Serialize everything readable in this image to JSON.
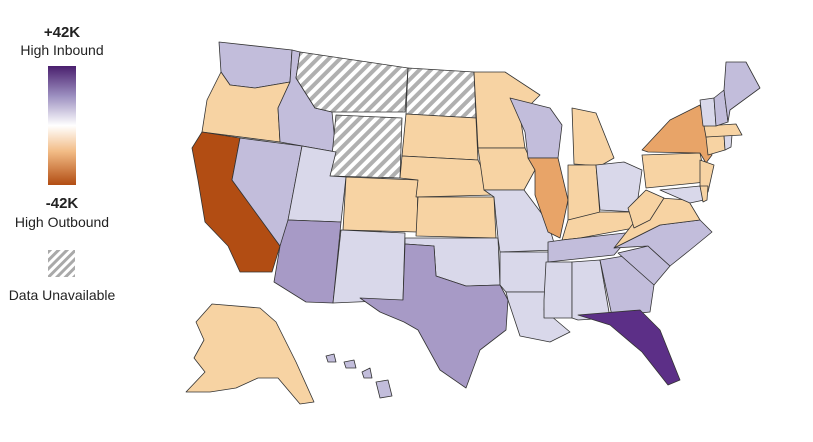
{
  "legend": {
    "max_label": "+42K",
    "max_caption": "High Inbound",
    "min_label": "-42K",
    "min_caption": "High Outbound",
    "unavailable_caption": "Data Unavailable"
  },
  "scale": {
    "max": 42000,
    "min": -42000,
    "color_max": "#4a1f6e",
    "color_mid": "#ffffff",
    "color_min": "#b24d13",
    "unavailable_pattern": "diagonal-gray-hatch"
  },
  "chart_data": {
    "type": "choropleth",
    "states": [
      {
        "code": "WA",
        "level": "light-purple"
      },
      {
        "code": "OR",
        "level": "light-orange"
      },
      {
        "code": "CA",
        "level": "dark-orange"
      },
      {
        "code": "ID",
        "level": "light-purple"
      },
      {
        "code": "NV",
        "level": "light-purple"
      },
      {
        "code": "MT",
        "level": "unavailable"
      },
      {
        "code": "WY",
        "level": "unavailable"
      },
      {
        "code": "UT",
        "level": "very-light-purple"
      },
      {
        "code": "AZ",
        "level": "medium-purple"
      },
      {
        "code": "CO",
        "level": "light-orange"
      },
      {
        "code": "NM",
        "level": "very-light-purple"
      },
      {
        "code": "ND",
        "level": "unavailable"
      },
      {
        "code": "SD",
        "level": "light-orange"
      },
      {
        "code": "NE",
        "level": "light-orange"
      },
      {
        "code": "KS",
        "level": "light-orange"
      },
      {
        "code": "OK",
        "level": "very-light-purple"
      },
      {
        "code": "TX",
        "level": "medium-purple"
      },
      {
        "code": "MN",
        "level": "light-orange"
      },
      {
        "code": "IA",
        "level": "light-orange"
      },
      {
        "code": "MO",
        "level": "very-light-purple"
      },
      {
        "code": "AR",
        "level": "very-light-purple"
      },
      {
        "code": "LA",
        "level": "very-light-purple"
      },
      {
        "code": "WI",
        "level": "light-purple"
      },
      {
        "code": "IL",
        "level": "medium-orange"
      },
      {
        "code": "MI",
        "level": "light-orange"
      },
      {
        "code": "IN",
        "level": "light-orange"
      },
      {
        "code": "OH",
        "level": "very-light-purple"
      },
      {
        "code": "KY",
        "level": "light-orange"
      },
      {
        "code": "TN",
        "level": "light-purple"
      },
      {
        "code": "MS",
        "level": "very-light-purple"
      },
      {
        "code": "AL",
        "level": "very-light-purple"
      },
      {
        "code": "GA",
        "level": "light-purple"
      },
      {
        "code": "FL",
        "level": "dark-purple"
      },
      {
        "code": "SC",
        "level": "light-purple"
      },
      {
        "code": "NC",
        "level": "light-purple"
      },
      {
        "code": "VA",
        "level": "light-orange"
      },
      {
        "code": "WV",
        "level": "light-orange"
      },
      {
        "code": "PA",
        "level": "light-orange"
      },
      {
        "code": "NY",
        "level": "medium-orange"
      },
      {
        "code": "NJ",
        "level": "light-orange"
      },
      {
        "code": "MD",
        "level": "very-light-purple"
      },
      {
        "code": "DE",
        "level": "light-orange"
      },
      {
        "code": "CT",
        "level": "light-orange"
      },
      {
        "code": "RI",
        "level": "very-light-purple"
      },
      {
        "code": "MA",
        "level": "light-orange"
      },
      {
        "code": "VT",
        "level": "very-light-purple"
      },
      {
        "code": "NH",
        "level": "light-purple"
      },
      {
        "code": "ME",
        "level": "light-purple"
      },
      {
        "code": "AK",
        "level": "light-orange"
      },
      {
        "code": "HI",
        "level": "light-purple"
      }
    ],
    "palette": {
      "dark-purple": "#5c2f87",
      "medium-purple": "#a79ac6",
      "light-purple": "#c2bddb",
      "very-light-purple": "#d9d8ea",
      "light-orange": "#f7d3a3",
      "medium-orange": "#e8a468",
      "dark-orange": "#b24d13",
      "unavailable": "hatch"
    }
  }
}
